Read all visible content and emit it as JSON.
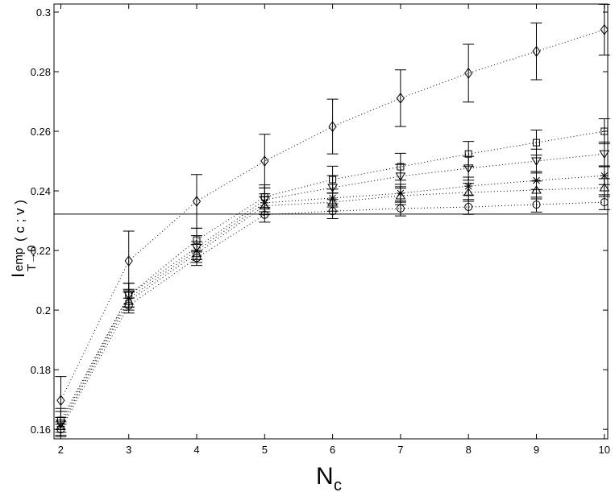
{
  "chart_data": {
    "type": "errorbar_line",
    "x_label": {
      "main": "N",
      "subscript": "c"
    },
    "y_label": {
      "main": "I",
      "superscript": "emp",
      "subscript": "T→0",
      "argument": "( c ; v )"
    },
    "x": [
      2,
      3,
      4,
      5,
      6,
      7,
      8,
      9,
      10
    ],
    "xlim": [
      1.9,
      10.05
    ],
    "xticks": [
      2,
      3,
      4,
      5,
      6,
      7,
      8,
      9,
      10
    ],
    "ylim": [
      0.1568,
      0.3027
    ],
    "yticks": [
      0.16,
      0.18,
      0.2,
      0.22,
      0.24,
      0.26,
      0.28,
      0.3
    ],
    "hline": 0.2322,
    "series": [
      {
        "marker": "diamond",
        "color": "#000000",
        "values": [
          0.1697,
          0.2165,
          0.2365,
          0.25,
          0.2616,
          0.2711,
          0.2795,
          0.2868,
          0.2941
        ],
        "errors": [
          0.008,
          0.01,
          0.009,
          0.009,
          0.0092,
          0.0095,
          0.0097,
          0.0095,
          0.0085
        ]
      },
      {
        "marker": "square",
        "color": "#000000",
        "values": [
          0.163,
          0.205,
          0.2235,
          0.238,
          0.2438,
          0.2481,
          0.2524,
          0.2562,
          0.26
        ],
        "errors": [
          0.004,
          0.004,
          0.004,
          0.004,
          0.0045,
          0.0045,
          0.0042,
          0.0042,
          0.0042
        ]
      },
      {
        "marker": "triangle-down",
        "color": "#000000",
        "values": [
          0.162,
          0.205,
          0.221,
          0.237,
          0.2411,
          0.2449,
          0.2476,
          0.25,
          0.2524
        ],
        "errors": [
          0.004,
          0.004,
          0.004,
          0.004,
          0.004,
          0.004,
          0.004,
          0.004,
          0.004
        ]
      },
      {
        "marker": "asterisk",
        "color": "#000000",
        "values": [
          0.161,
          0.204,
          0.22,
          0.236,
          0.2376,
          0.2392,
          0.2416,
          0.2435,
          0.2451
        ],
        "errors": [
          0.003,
          0.003,
          0.003,
          0.003,
          0.003,
          0.003,
          0.003,
          0.003,
          0.003
        ]
      },
      {
        "marker": "triangle-up",
        "color": "#000000",
        "values": [
          0.161,
          0.203,
          0.219,
          0.235,
          0.2362,
          0.2384,
          0.2395,
          0.2403,
          0.2411
        ],
        "errors": [
          0.003,
          0.003,
          0.003,
          0.003,
          0.003,
          0.003,
          0.003,
          0.003,
          0.003
        ]
      },
      {
        "marker": "circle",
        "color": "#000000",
        "values": [
          0.16,
          0.2015,
          0.2175,
          0.232,
          0.2332,
          0.2341,
          0.2346,
          0.2354,
          0.2362
        ],
        "errors": [
          0.0025,
          0.0025,
          0.0025,
          0.0025,
          0.0025,
          0.0025,
          0.0025,
          0.0025,
          0.0025
        ]
      }
    ]
  }
}
